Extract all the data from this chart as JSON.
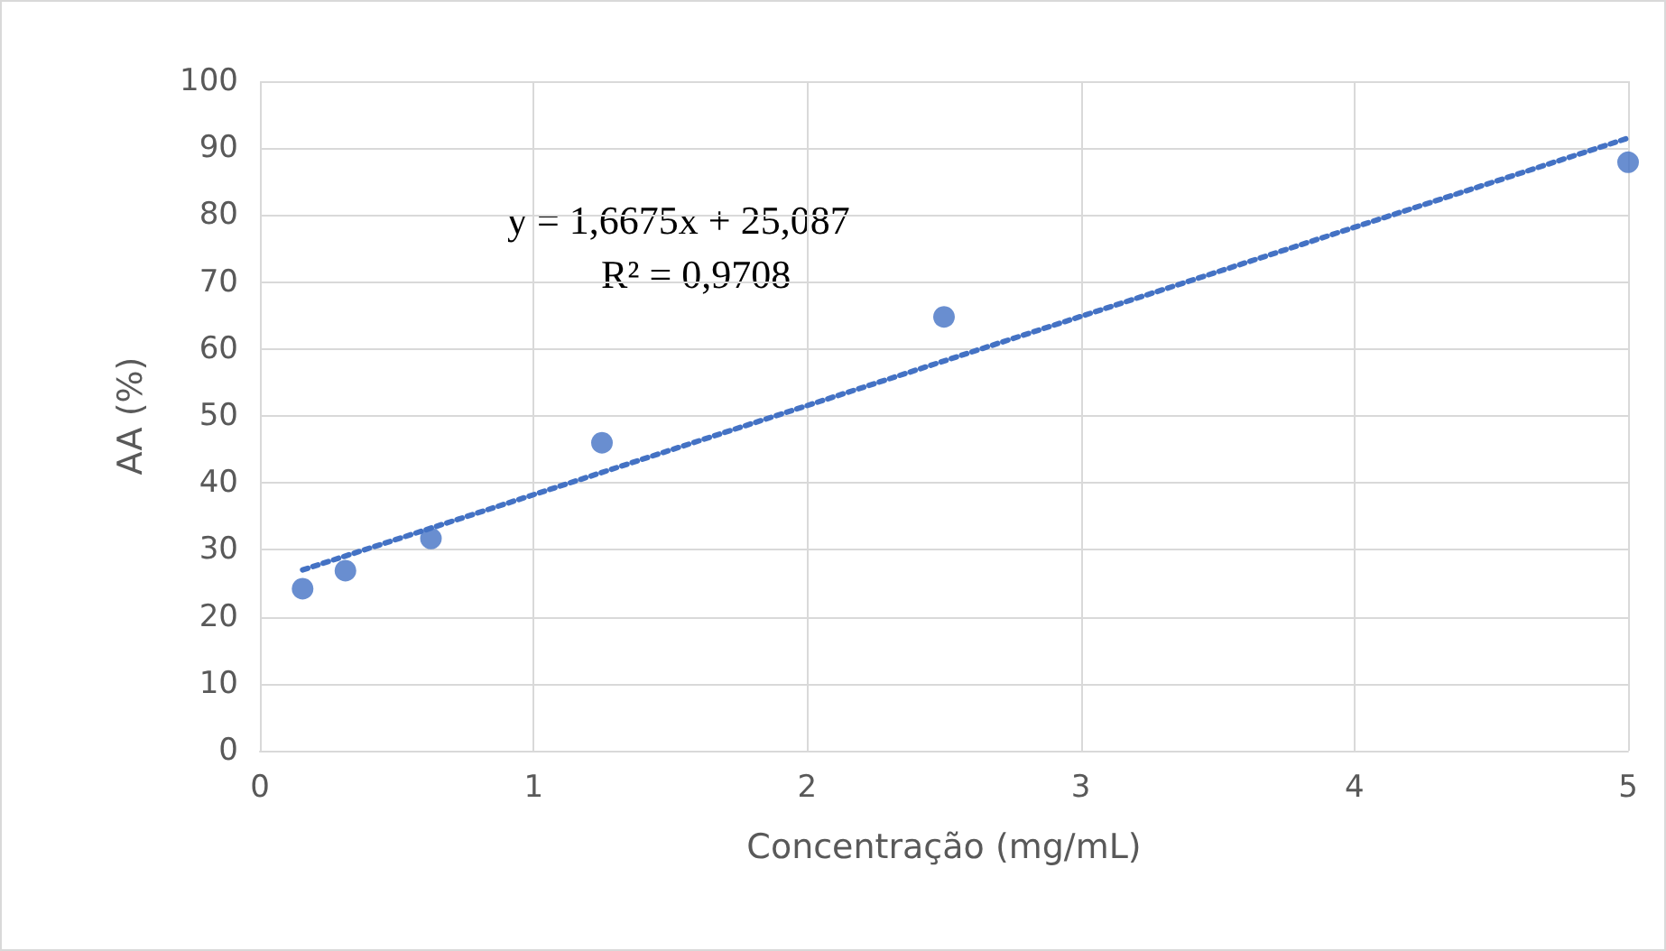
{
  "chart_data": {
    "type": "scatter",
    "xlabel": "Concentração (mg/mL)",
    "ylabel": "AA (%)",
    "annotations": [
      "y = 1,6675x + 25,087",
      "R² = 0,9708"
    ],
    "series": [
      {
        "color": "#4472c4",
        "x": [
          0.156,
          0.3125,
          0.625,
          1.25,
          2.5,
          5
        ],
        "values": [
          24.2,
          26.9,
          31.7,
          46,
          64.8,
          87.9
        ]
      },
      {
        "type": "line",
        "color": "#4472c4",
        "x": [
          0.156,
          5
        ],
        "values": [
          27,
          91.5
        ],
        "line_style": "dotted",
        "marker": "none"
      }
    ],
    "marker": "circle",
    "xlim": [
      0,
      5
    ],
    "xticks": [
      0,
      1,
      2,
      3,
      4,
      5
    ],
    "ylim": [
      0,
      100
    ],
    "yticks": [
      0,
      10,
      20,
      30,
      40,
      50,
      60,
      70,
      80,
      90,
      100
    ],
    "grid": true
  }
}
